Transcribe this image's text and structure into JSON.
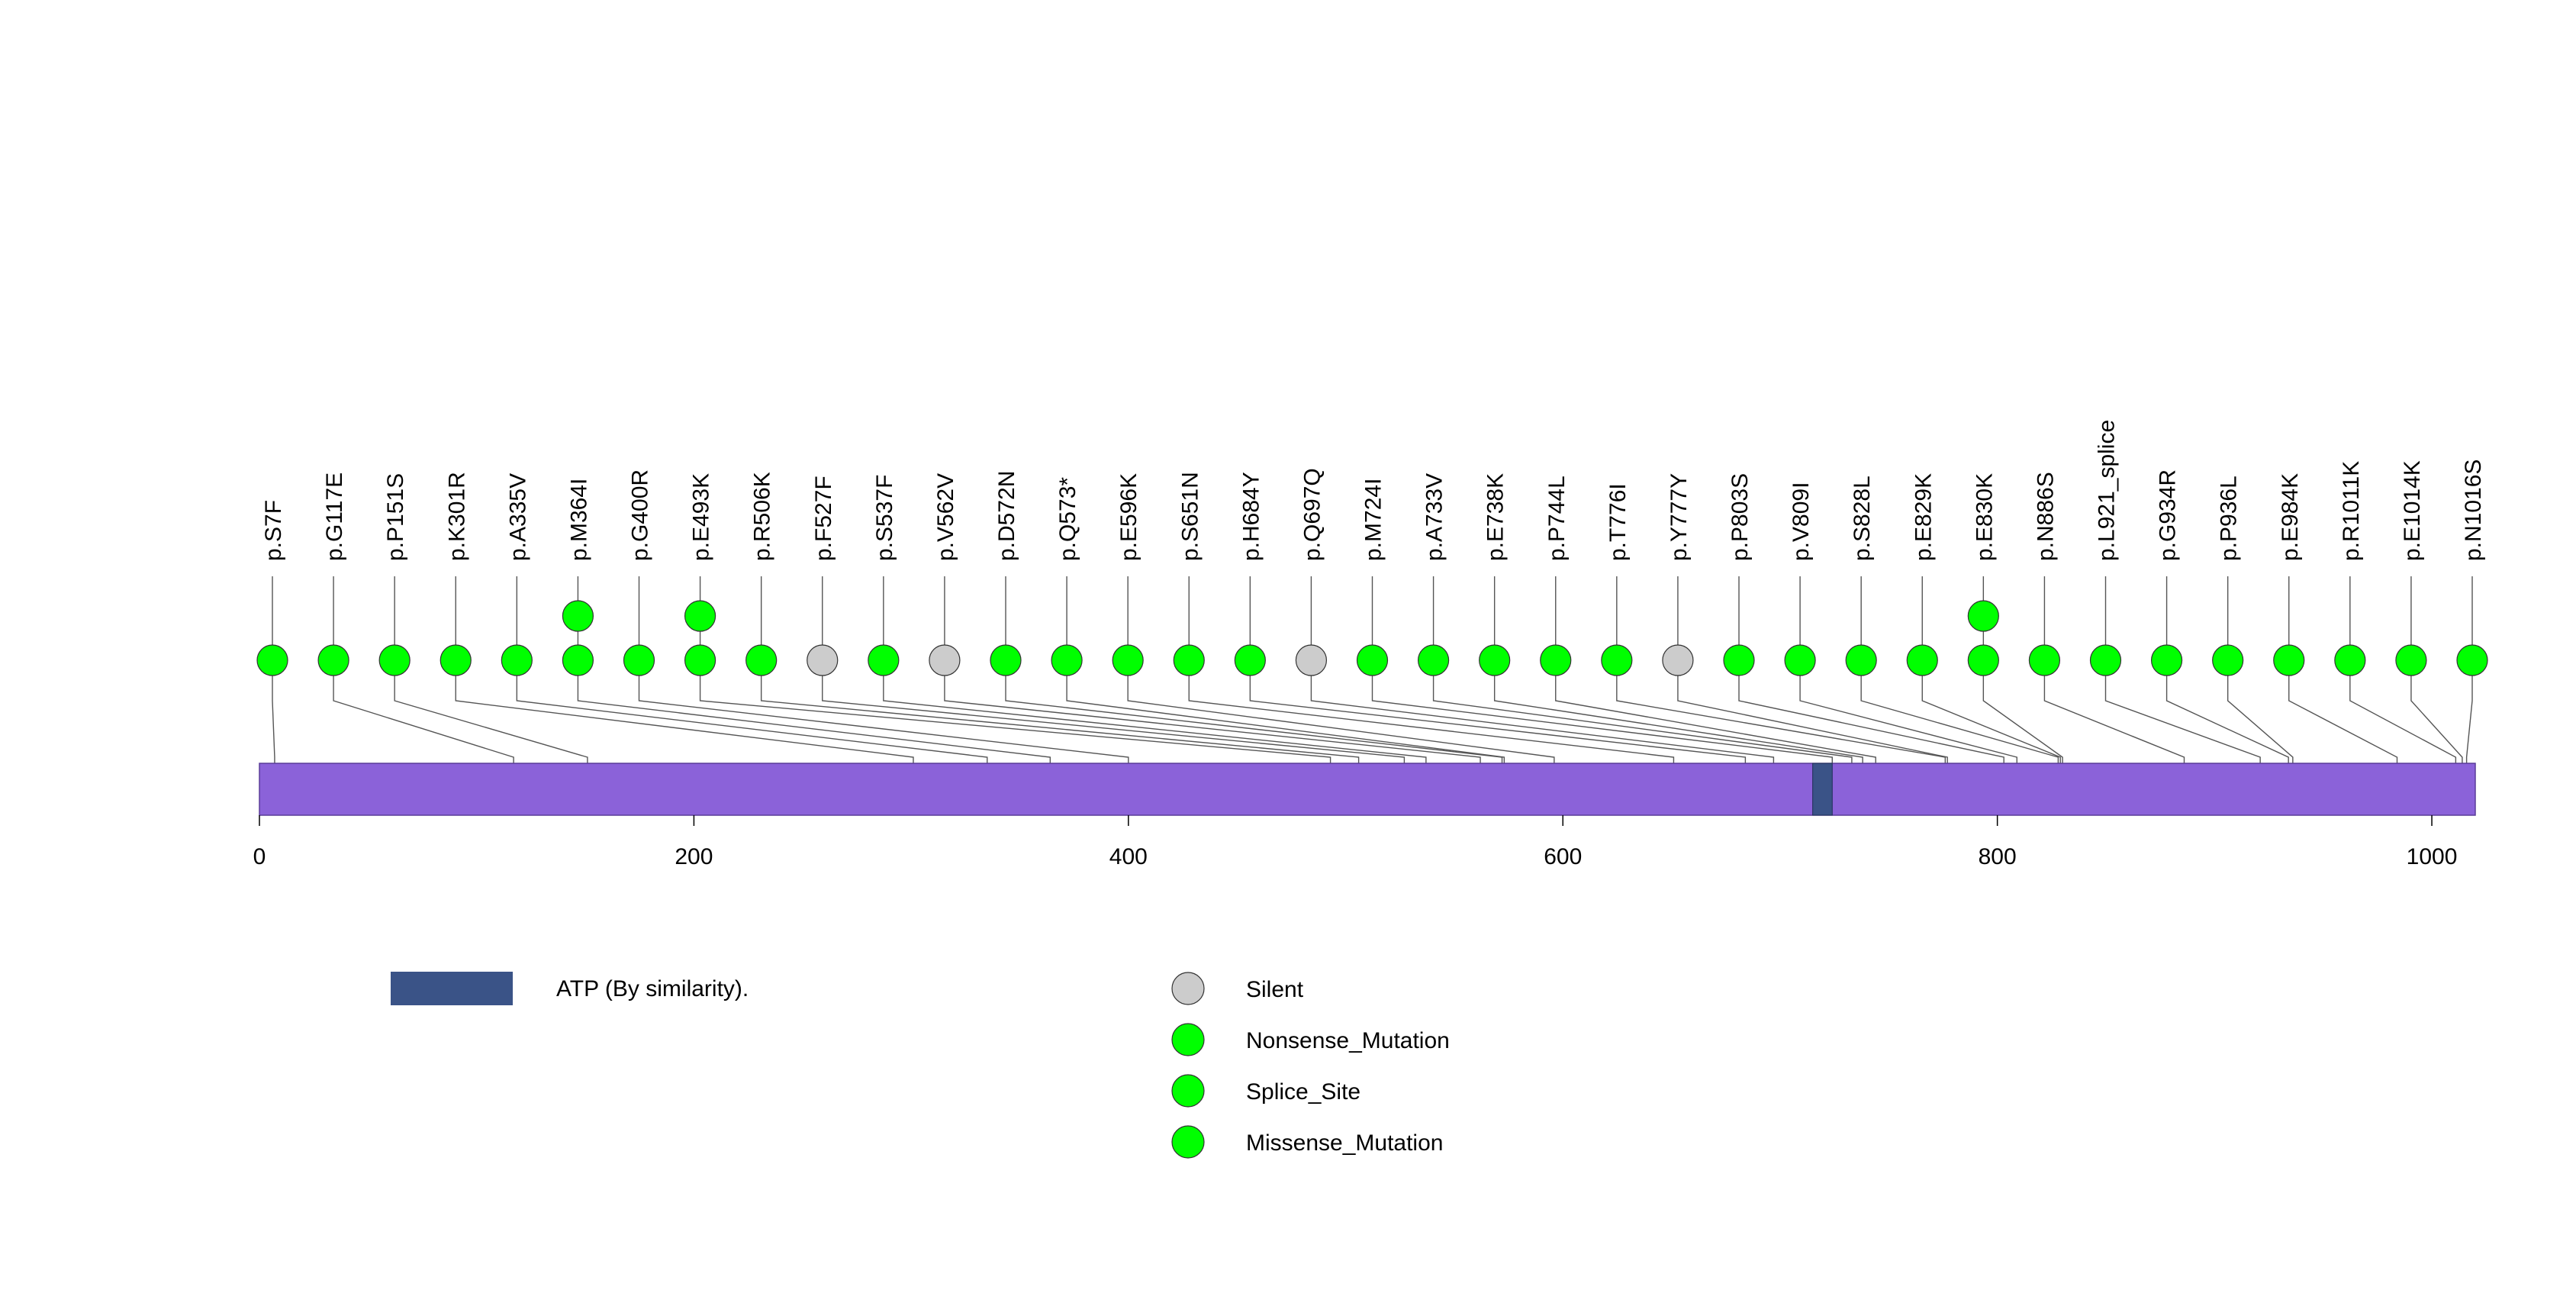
{
  "chart_data": {
    "type": "lollipop",
    "protein_length": 1020,
    "xlim": [
      0,
      1020
    ],
    "ticks": [
      0,
      200,
      400,
      600,
      800,
      1000
    ],
    "domains": [
      {
        "name": "ATP (By similarity).",
        "start": 715,
        "end": 724
      }
    ],
    "lollipops": [
      {
        "label": "p.S7F",
        "pos": 7,
        "type": "Missense_Mutation",
        "count": 1
      },
      {
        "label": "p.G117E",
        "pos": 117,
        "type": "Missense_Mutation",
        "count": 1
      },
      {
        "label": "p.P151S",
        "pos": 151,
        "type": "Missense_Mutation",
        "count": 1
      },
      {
        "label": "p.K301R",
        "pos": 301,
        "type": "Missense_Mutation",
        "count": 1
      },
      {
        "label": "p.A335V",
        "pos": 335,
        "type": "Missense_Mutation",
        "count": 1
      },
      {
        "label": "p.M364I",
        "pos": 364,
        "type": "Missense_Mutation",
        "count": 2
      },
      {
        "label": "p.G400R",
        "pos": 400,
        "type": "Missense_Mutation",
        "count": 1
      },
      {
        "label": "p.E493K",
        "pos": 493,
        "type": "Missense_Mutation",
        "count": 2
      },
      {
        "label": "p.R506K",
        "pos": 506,
        "type": "Missense_Mutation",
        "count": 1
      },
      {
        "label": "p.F527F",
        "pos": 527,
        "type": "Silent",
        "count": 1
      },
      {
        "label": "p.S537F",
        "pos": 537,
        "type": "Missense_Mutation",
        "count": 1
      },
      {
        "label": "p.V562V",
        "pos": 562,
        "type": "Silent",
        "count": 1
      },
      {
        "label": "p.D572N",
        "pos": 572,
        "type": "Missense_Mutation",
        "count": 1
      },
      {
        "label": "p.Q573*",
        "pos": 573,
        "type": "Nonsense_Mutation",
        "count": 1
      },
      {
        "label": "p.E596K",
        "pos": 596,
        "type": "Missense_Mutation",
        "count": 1
      },
      {
        "label": "p.S651N",
        "pos": 651,
        "type": "Missense_Mutation",
        "count": 1
      },
      {
        "label": "p.H684Y",
        "pos": 684,
        "type": "Missense_Mutation",
        "count": 1
      },
      {
        "label": "p.Q697Q",
        "pos": 697,
        "type": "Silent",
        "count": 1
      },
      {
        "label": "p.M724I",
        "pos": 724,
        "type": "Missense_Mutation",
        "count": 1
      },
      {
        "label": "p.A733V",
        "pos": 733,
        "type": "Missense_Mutation",
        "count": 1
      },
      {
        "label": "p.E738K",
        "pos": 738,
        "type": "Missense_Mutation",
        "count": 1
      },
      {
        "label": "p.P744L",
        "pos": 744,
        "type": "Missense_Mutation",
        "count": 1
      },
      {
        "label": "p.T776I",
        "pos": 776,
        "type": "Missense_Mutation",
        "count": 1
      },
      {
        "label": "p.Y777Y",
        "pos": 777,
        "type": "Silent",
        "count": 1
      },
      {
        "label": "p.P803S",
        "pos": 803,
        "type": "Missense_Mutation",
        "count": 1
      },
      {
        "label": "p.V809I",
        "pos": 809,
        "type": "Missense_Mutation",
        "count": 1
      },
      {
        "label": "p.S828L",
        "pos": 828,
        "type": "Missense_Mutation",
        "count": 1
      },
      {
        "label": "p.E829K",
        "pos": 829,
        "type": "Missense_Mutation",
        "count": 1
      },
      {
        "label": "p.E830K",
        "pos": 830,
        "type": "Missense_Mutation",
        "count": 2
      },
      {
        "label": "p.N886S",
        "pos": 886,
        "type": "Missense_Mutation",
        "count": 1
      },
      {
        "label": "p.L921_splice",
        "pos": 921,
        "type": "Splice_Site",
        "count": 1
      },
      {
        "label": "p.G934R",
        "pos": 934,
        "type": "Missense_Mutation",
        "count": 1
      },
      {
        "label": "p.P936L",
        "pos": 936,
        "type": "Missense_Mutation",
        "count": 1
      },
      {
        "label": "p.E984K",
        "pos": 984,
        "type": "Missense_Mutation",
        "count": 1
      },
      {
        "label": "p.R1011K",
        "pos": 1011,
        "type": "Missense_Mutation",
        "count": 1
      },
      {
        "label": "p.E1014K",
        "pos": 1014,
        "type": "Missense_Mutation",
        "count": 1
      },
      {
        "label": "p.N1016S",
        "pos": 1016,
        "type": "Missense_Mutation",
        "count": 1
      }
    ],
    "legend": {
      "domain_label": "ATP (By similarity).",
      "mutation_types": [
        {
          "name": "Silent",
          "color": "#cccccc"
        },
        {
          "name": "Nonsense_Mutation",
          "color": "#00ff00"
        },
        {
          "name": "Splice_Site",
          "color": "#00ff00"
        },
        {
          "name": "Missense_Mutation",
          "color": "#00ff00"
        }
      ]
    },
    "colors": {
      "protein_bar": "#8b62d9",
      "domain": "#3a5387",
      "stem": "#555555"
    }
  }
}
